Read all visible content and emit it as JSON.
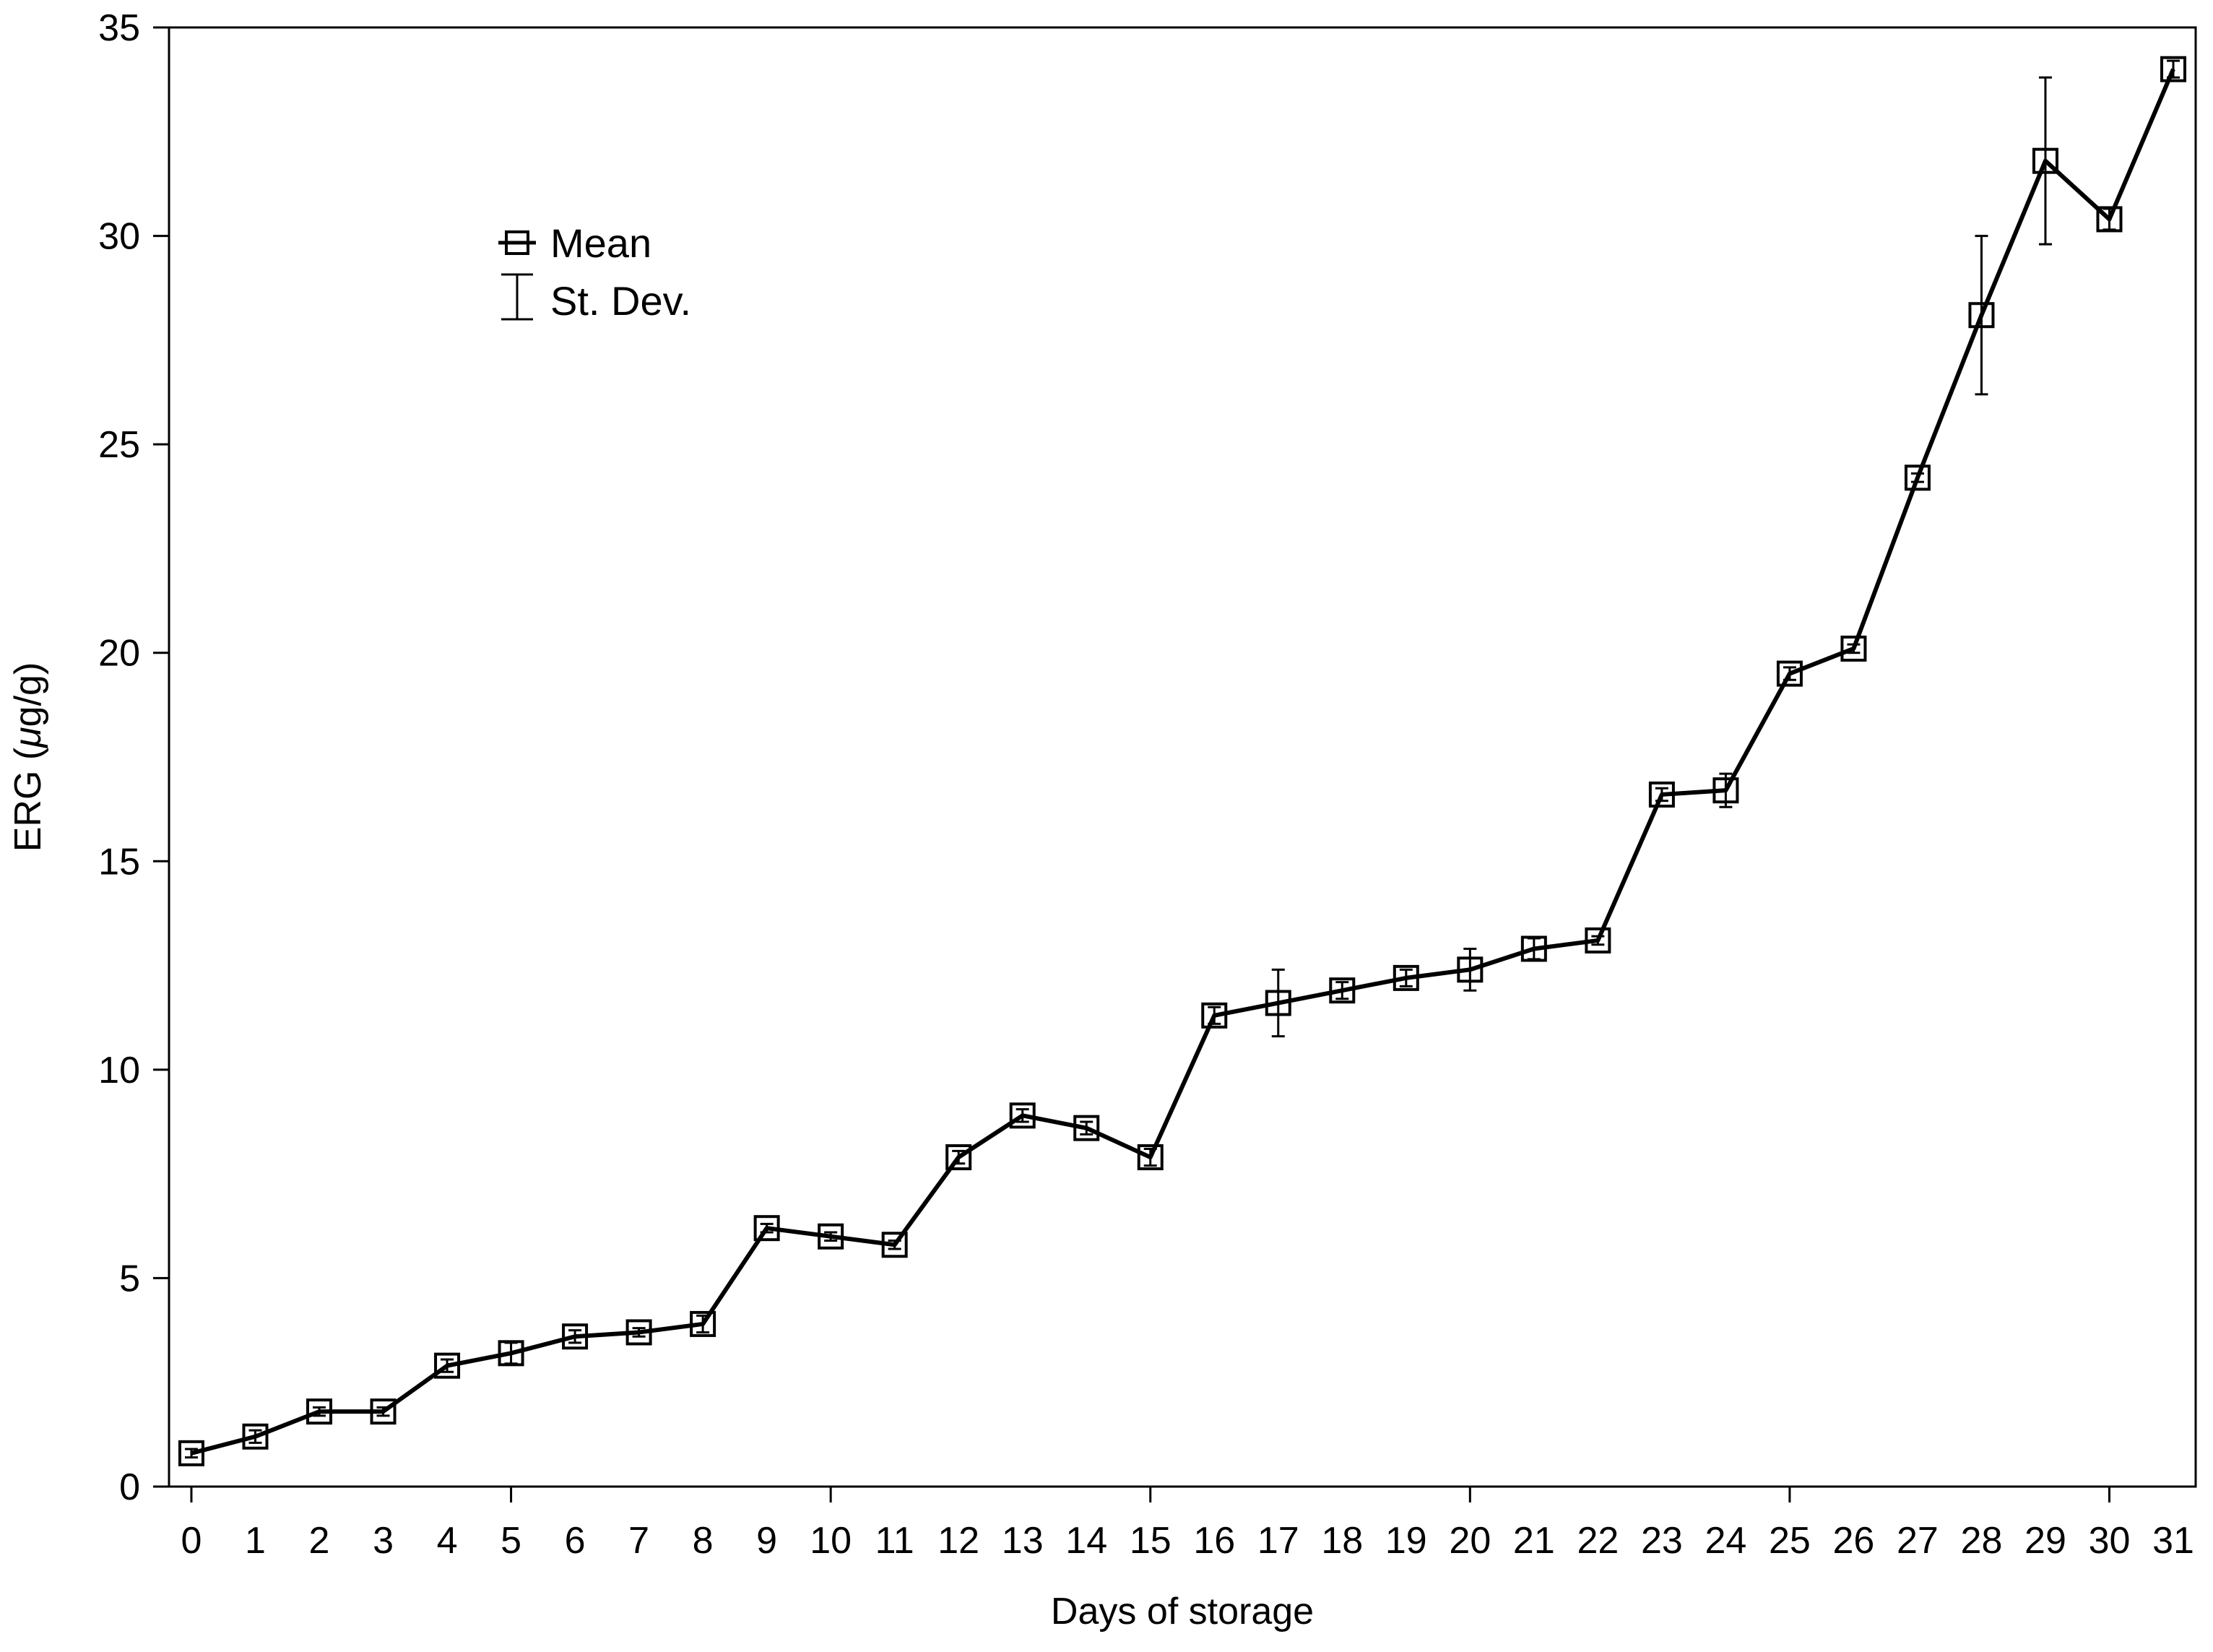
{
  "chart_data": {
    "type": "line",
    "title": "",
    "xlabel": "Days of storage",
    "ylabel": "ERG (μg/g)",
    "ylabel_parts": {
      "prefix": "ERG (",
      "mu": "μ",
      "suffix": "g/g)"
    },
    "x": [
      0,
      1,
      2,
      3,
      4,
      5,
      6,
      7,
      8,
      9,
      10,
      11,
      12,
      13,
      14,
      15,
      16,
      17,
      18,
      19,
      20,
      21,
      22,
      23,
      24,
      25,
      26,
      27,
      28,
      29,
      30,
      31
    ],
    "x_tick_labels": [
      "0",
      "1",
      "2",
      "3",
      "4",
      "5",
      "6",
      "7",
      "8",
      "9",
      "10",
      "11",
      "12",
      "13",
      "14",
      "15",
      "16",
      "17",
      "18",
      "19",
      "20",
      "21",
      "22",
      "23",
      "24",
      "25",
      "26",
      "27",
      "28",
      "29",
      "30",
      "31"
    ],
    "y_tick_labels": [
      "0",
      "5",
      "10",
      "15",
      "20",
      "25",
      "30",
      "35"
    ],
    "ylim": [
      0,
      35
    ],
    "grid": false,
    "legend_position": "top-left",
    "series": [
      {
        "name": "Mean",
        "values": [
          0.8,
          1.2,
          1.8,
          1.8,
          2.9,
          3.2,
          3.6,
          3.7,
          3.9,
          6.2,
          6.0,
          5.8,
          7.9,
          8.9,
          8.6,
          7.9,
          11.3,
          11.6,
          11.9,
          12.2,
          12.4,
          12.9,
          13.1,
          16.6,
          16.7,
          19.5,
          20.1,
          24.2,
          28.1,
          31.8,
          30.4,
          34.0
        ],
        "std_dev": [
          0.1,
          0.15,
          0.1,
          0.1,
          0.15,
          0.25,
          0.15,
          0.1,
          0.2,
          0.1,
          0.1,
          0.1,
          0.15,
          0.15,
          0.15,
          0.2,
          0.2,
          0.8,
          0.2,
          0.2,
          0.5,
          0.25,
          0.1,
          0.15,
          0.4,
          0.15,
          0.1,
          0.1,
          1.9,
          2.0,
          0.25,
          0.2
        ]
      }
    ],
    "legend": {
      "mean_label": "Mean",
      "sd_label": "St. Dev."
    },
    "colors": {
      "line": "#000000",
      "background": "#ffffff"
    }
  }
}
